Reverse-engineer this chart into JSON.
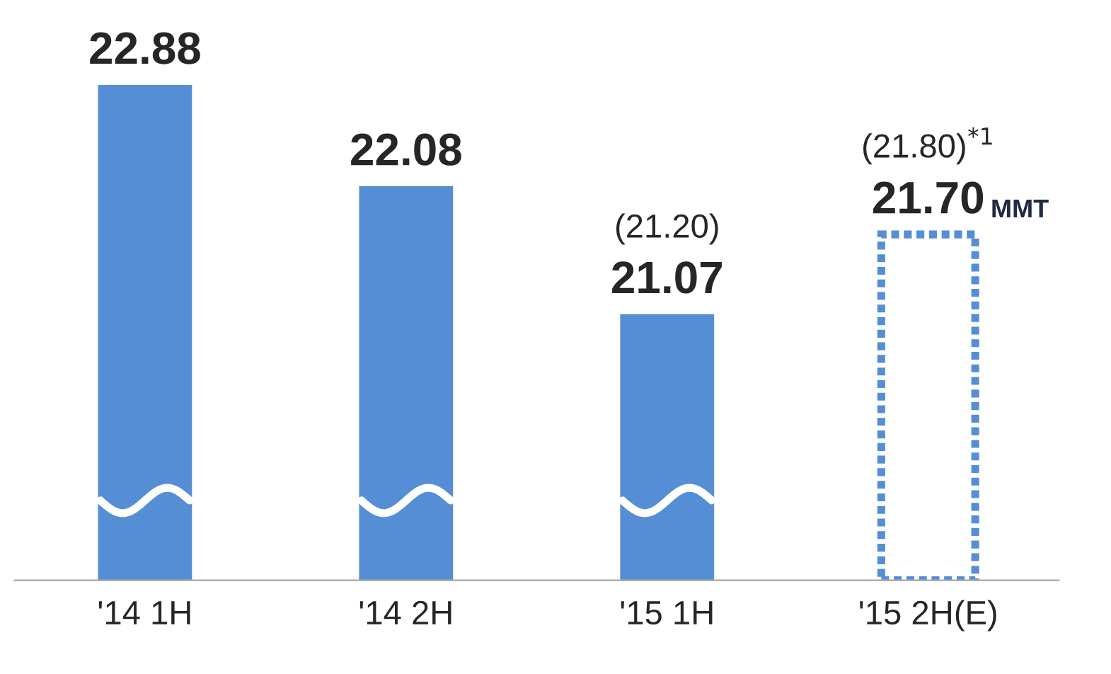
{
  "chart_data": {
    "type": "bar",
    "categories": [
      "'14 1H",
      "'14 2H",
      "'15 1H",
      "'15 2H(E)"
    ],
    "series": [
      {
        "color": "#558ed5",
        "line_style": "solid",
        "values": [
          22.88,
          22.08,
          21.07,
          null
        ],
        "value_labels": [
          "22.88",
          "22.08",
          "21.07",
          null
        ]
      },
      {
        "color": "#558ed5",
        "line_style": "dotted",
        "values": [
          null,
          null,
          null,
          21.7
        ],
        "value_labels": [
          null,
          null,
          null,
          "21.70"
        ]
      }
    ],
    "ylim": [
      18.97,
      22.88
    ],
    "tick_labels": "x",
    "annotations": [
      "(21.20)",
      "(21.80)$^{*1}$",
      "MMT"
    ]
  }
}
